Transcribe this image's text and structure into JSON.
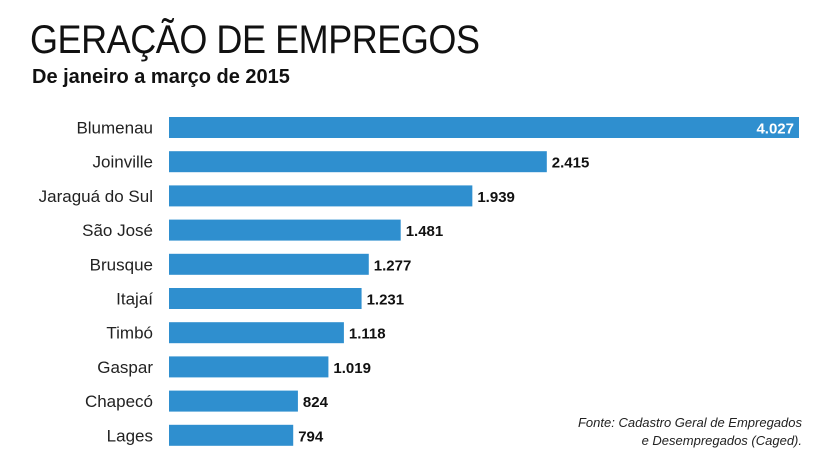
{
  "header": {
    "title": "GERAÇÃO DE EMPREGOS",
    "subtitle": "De janeiro a março de 2015"
  },
  "footer": {
    "source_line1": "Fonte: Cadastro Geral de Empregados",
    "source_line2": "e Desempregados (Caged)."
  },
  "colors": {
    "bar": "#2f8fcf",
    "label": "#222222",
    "value": "#111111",
    "value_inside": "#ffffff"
  },
  "chart_data": {
    "type": "bar",
    "orientation": "horizontal",
    "title": "GERAÇÃO DE EMPREGOS",
    "subtitle": "De janeiro a março de 2015",
    "categories": [
      "Blumenau",
      "Joinville",
      "Jaraguá do Sul",
      "São José",
      "Brusque",
      "Itajaí",
      "Timbó",
      "Gaspar",
      "Chapecó",
      "Lages"
    ],
    "values": [
      4027,
      2415,
      1939,
      1481,
      1277,
      1231,
      1118,
      1019,
      824,
      794
    ],
    "value_labels": [
      "4.027",
      "2.415",
      "1.939",
      "1.481",
      "1.277",
      "1.231",
      "1.118",
      "1.019",
      "824",
      "794"
    ],
    "xlim": [
      0,
      4027
    ],
    "grid": false,
    "legend": "none"
  }
}
